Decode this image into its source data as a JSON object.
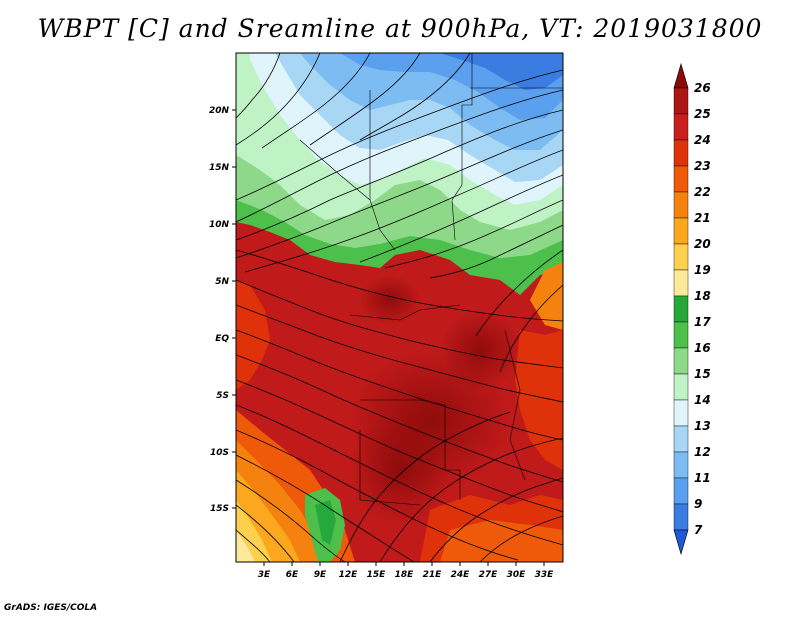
{
  "title": "WBPT [C] and Sreamline at 900hPa, VT: 2019031800",
  "footer": "GrADS: IGES/COLA",
  "map": {
    "variable": "Wet-bulb potential temperature",
    "units": "C",
    "level": "900hPa",
    "valid_time": "2019031800",
    "lat_labels": [
      "20N",
      "15N",
      "10N",
      "5N",
      "EQ",
      "5S",
      "10S",
      "15S"
    ],
    "lon_labels": [
      "3E",
      "6E",
      "9E",
      "12E",
      "15E",
      "18E",
      "21E",
      "24E",
      "27E",
      "30E",
      "33E"
    ]
  },
  "colorbar": {
    "labels": [
      "26",
      "25",
      "24",
      "23",
      "22",
      "21",
      "20",
      "19",
      "18",
      "17",
      "16",
      "15",
      "14",
      "13",
      "12",
      "11",
      "9",
      "7"
    ],
    "colors": [
      "#8b0a0a",
      "#ad1414",
      "#c91e1e",
      "#e0320a",
      "#ef5a0a",
      "#f5820f",
      "#fba81e",
      "#fdd050",
      "#fde99a",
      "#27a83a",
      "#4cc04b",
      "#8ed889",
      "#bff2c4",
      "#dff4fb",
      "#a8d6f5",
      "#7cbcf2",
      "#5ba0ee",
      "#3a7ce0",
      "#2058d8"
    ]
  }
}
